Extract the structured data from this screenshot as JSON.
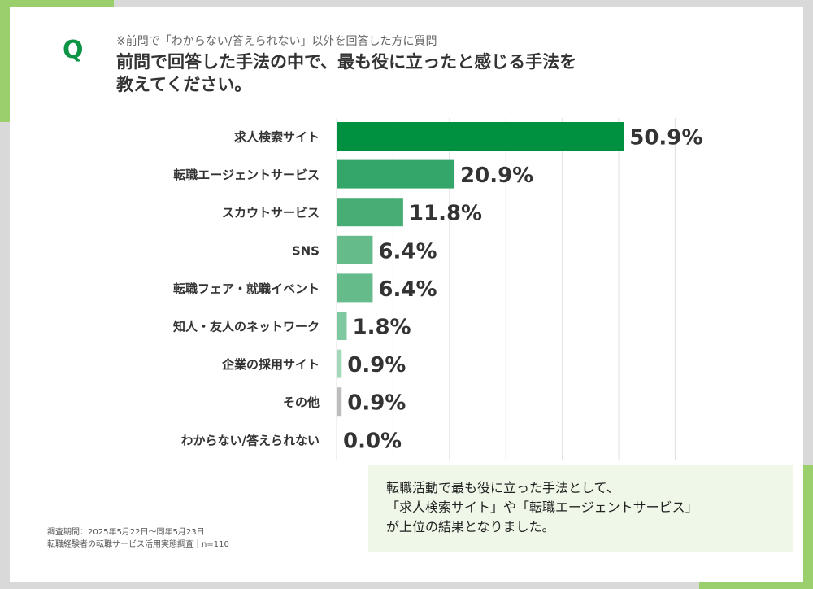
{
  "header": {
    "q_mark": "Q",
    "note": "※前問で「わからない/答えられない」以外を回答した方に質問",
    "title_lines": [
      "前問で回答した手法の中で、最も役に立ったと感じる手法を",
      "教えてください。"
    ]
  },
  "chart_data": {
    "type": "bar",
    "orientation": "horizontal",
    "categories": [
      "求人検索サイト",
      "転職エージェントサービス",
      "スカウトサービス",
      "SNS",
      "転職フェア・就職イベント",
      "知人・友人のネットワーク",
      "企業の採用サイト",
      "その他",
      "わからない/答えられない"
    ],
    "values": [
      50.9,
      20.9,
      11.8,
      6.4,
      6.4,
      1.8,
      0.9,
      0.9,
      0.0
    ],
    "labels": [
      "50.9%",
      "20.9%",
      "11.8%",
      "6.4%",
      "6.4%",
      "1.8%",
      "0.9%",
      "0.9%",
      "0.0%"
    ],
    "colors": [
      "#009140",
      "#35a66a",
      "#48ad74",
      "#66bb8b",
      "#66bb8b",
      "#80c8a0",
      "#a3d9b9",
      "#bdbdbd",
      "#bdbdbd"
    ],
    "xlim": [
      0,
      60
    ],
    "grid": true,
    "unit": "%"
  },
  "summary": {
    "lines": [
      "転職活動で最も役に立った手法として、",
      "「求人検索サイト」や「転職エージェントサービス」",
      "が上位の結果となりました。"
    ]
  },
  "footer": {
    "lines": [
      "調査期間：2025年5月22日〜同年5月23日",
      "転職経験者の転職サービス活用実態調査｜n=110"
    ]
  },
  "colors": {
    "accent": "#9bcf6c",
    "brand": "#0a9444",
    "summary_bg": "#eff7e8"
  }
}
